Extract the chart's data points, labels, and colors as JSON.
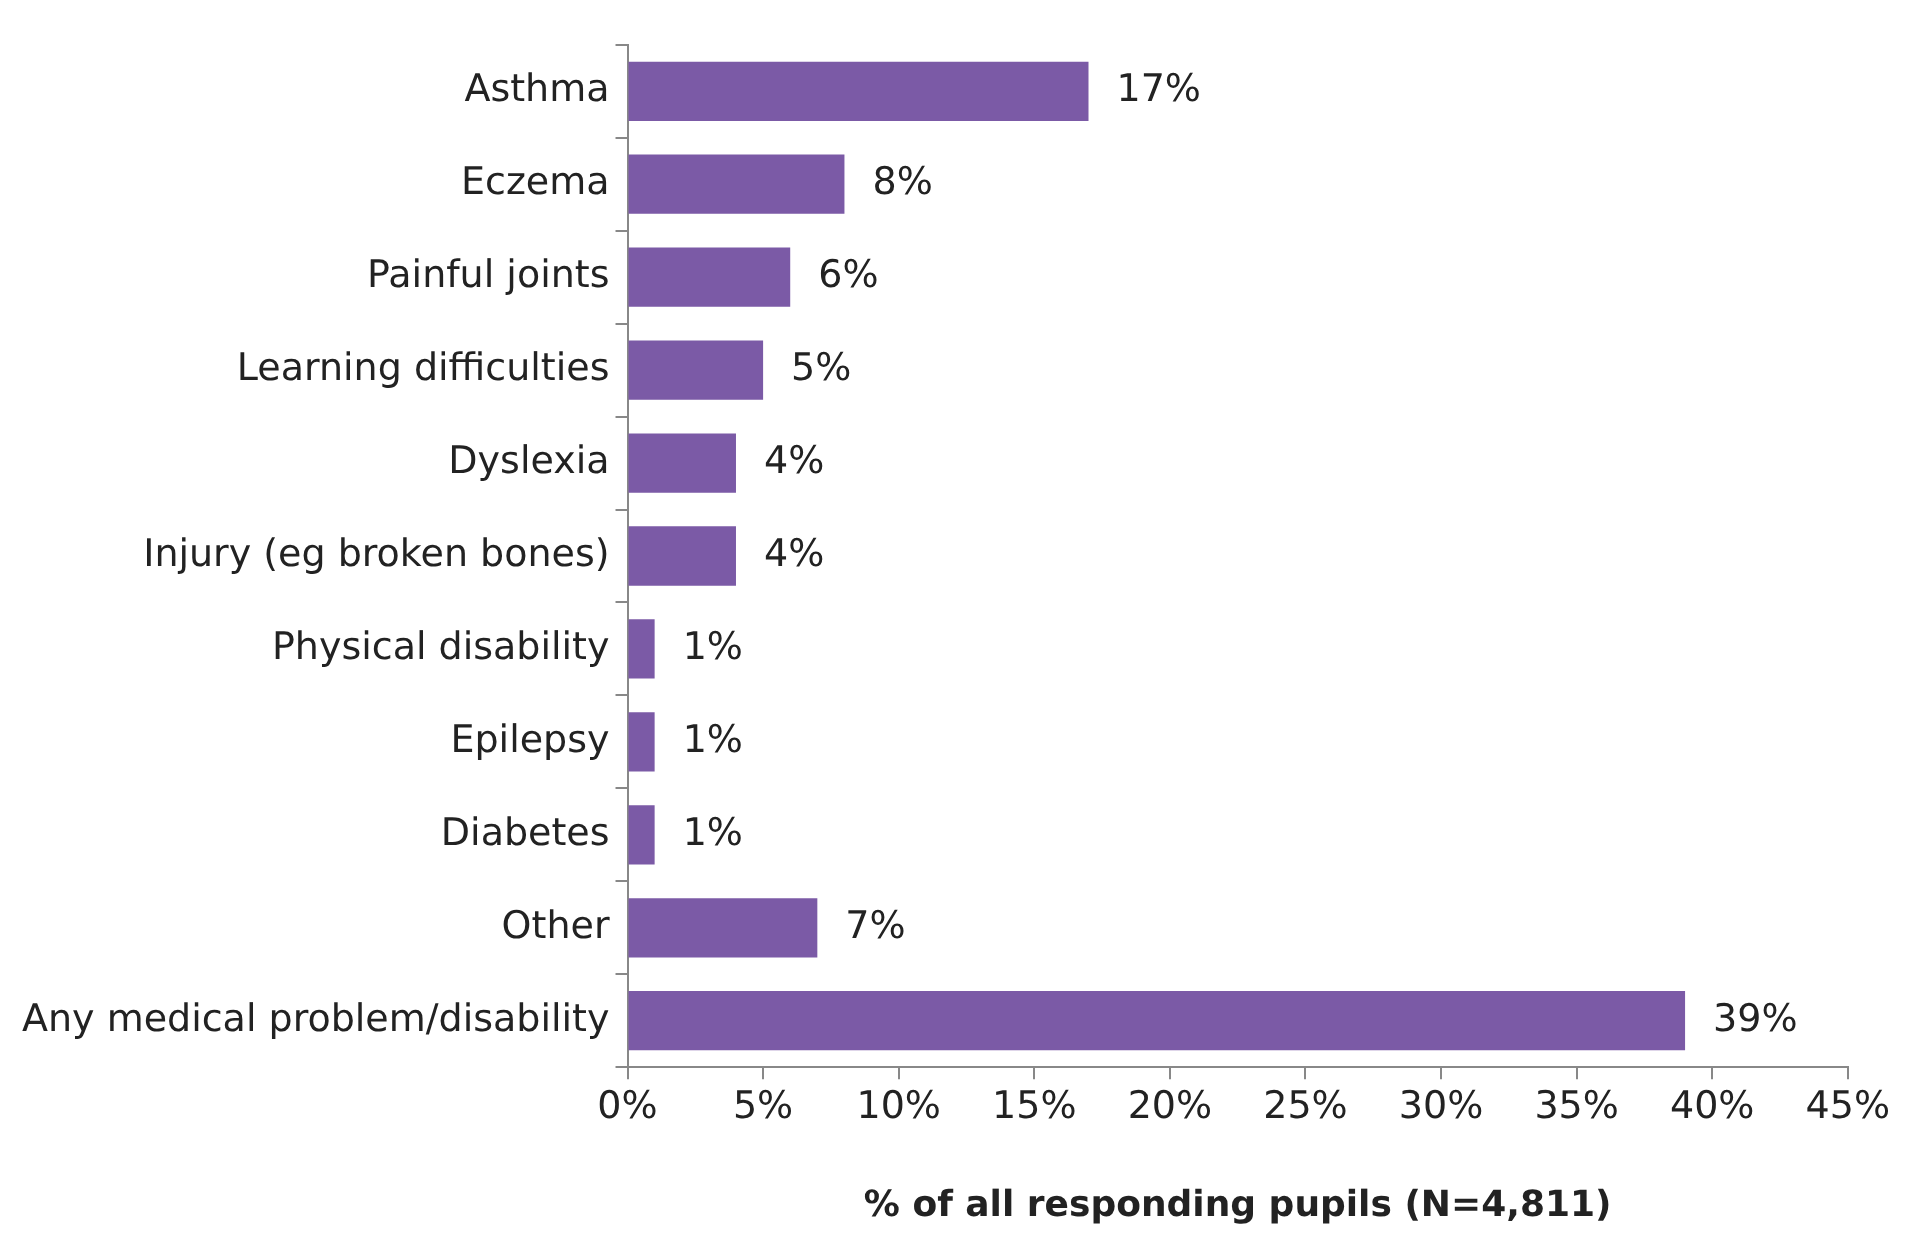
{
  "chart_data": {
    "type": "bar",
    "orientation": "horizontal",
    "xlabel": "% of all responding pupils (N=4,811)",
    "categories": [
      "Asthma",
      "Eczema",
      "Painful joints",
      "Learning difficulties",
      "Dyslexia",
      "Injury (eg broken bones)",
      "Physical disability",
      "Epilepsy",
      "Diabetes",
      "Other",
      "Any medical problem/disability"
    ],
    "values": [
      17,
      8,
      6,
      5,
      4,
      4,
      1,
      1,
      1,
      7,
      39
    ],
    "value_labels": [
      "17%",
      "8%",
      "6%",
      "5%",
      "4%",
      "4%",
      "1%",
      "1%",
      "1%",
      "7%",
      "39%"
    ],
    "color": "#7b5aa6",
    "xlim": [
      0,
      45
    ],
    "xticks": [
      {
        "value": 0,
        "label": "0%"
      },
      {
        "value": 5,
        "label": "5%"
      },
      {
        "value": 10,
        "label": "10%"
      },
      {
        "value": 15,
        "label": "15%"
      },
      {
        "value": 20,
        "label": "20%"
      },
      {
        "value": 25,
        "label": "25%"
      },
      {
        "value": 30,
        "label": "30%"
      },
      {
        "value": 35,
        "label": "35%"
      },
      {
        "value": 40,
        "label": "40%"
      },
      {
        "value": 45,
        "label": "45%"
      }
    ],
    "grid": false,
    "legend": false
  }
}
